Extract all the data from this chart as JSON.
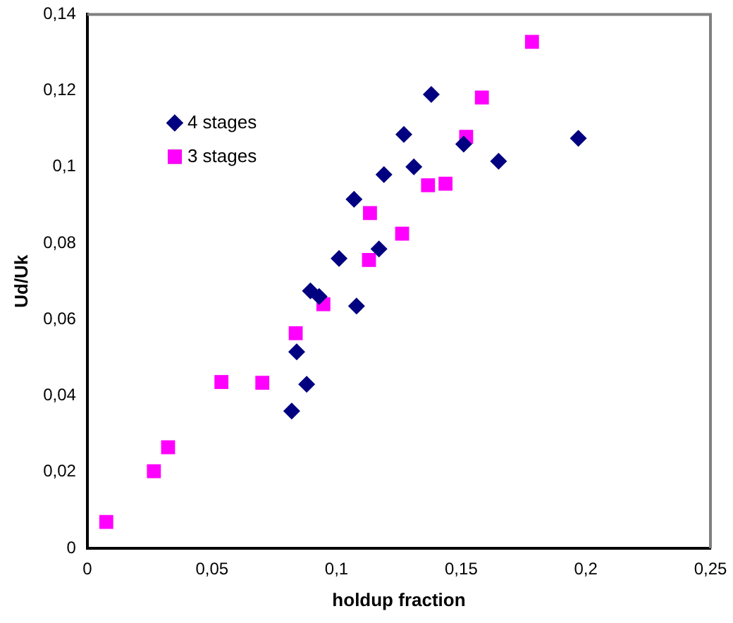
{
  "chart_data": {
    "type": "scatter",
    "xlabel": "holdup fraction",
    "ylabel": "Ud/Uk",
    "xlim": [
      0,
      0.25
    ],
    "ylim": [
      0,
      0.14
    ],
    "xticks": [
      0,
      {
        "value": 0.05,
        "label": "0,05"
      },
      {
        "value": 0.1,
        "label": "0,1"
      },
      {
        "value": 0.15,
        "label": "0,15"
      },
      {
        "value": 0.2,
        "label": "0,2"
      },
      {
        "value": 0.25,
        "label": "0,25"
      }
    ],
    "yticks": [
      0,
      {
        "value": 0.02,
        "label": "0,02"
      },
      {
        "value": 0.04,
        "label": "0,04"
      },
      {
        "value": 0.06,
        "label": "0,06"
      },
      {
        "value": 0.08,
        "label": "0,08"
      },
      {
        "value": 0.1,
        "label": "0,1"
      },
      {
        "value": 0.12,
        "label": "0,12"
      },
      {
        "value": 0.14,
        "label": "0,14"
      }
    ],
    "grid": false,
    "legend": "top left",
    "series": [
      {
        "name": "4 stages",
        "color": "#000080",
        "marker": "diamond",
        "x": [
          0.082,
          0.084,
          0.088,
          0.0895,
          0.093,
          0.101,
          0.107,
          0.108,
          0.117,
          0.119,
          0.127,
          0.131,
          0.138,
          0.151,
          0.165,
          0.197
        ],
        "values": [
          0.036,
          0.0515,
          0.043,
          0.0675,
          0.066,
          0.076,
          0.0915,
          0.0635,
          0.0785,
          0.098,
          0.1085,
          0.1,
          0.119,
          0.106,
          0.1015,
          0.1075
        ]
      },
      {
        "name": "3 stages",
        "color": "#ff00ff",
        "marker": "square",
        "x": [
          0.0076,
          0.0267,
          0.0324,
          0.0538,
          0.0702,
          0.0836,
          0.0947,
          0.113,
          0.1134,
          0.1263,
          0.1367,
          0.1437,
          0.152,
          0.1583,
          0.1784
        ],
        "values": [
          0.0069,
          0.0202,
          0.0265,
          0.0436,
          0.0434,
          0.0564,
          0.064,
          0.0756,
          0.0879,
          0.0825,
          0.0952,
          0.0956,
          0.1079,
          0.1182,
          0.1328
        ]
      }
    ]
  }
}
